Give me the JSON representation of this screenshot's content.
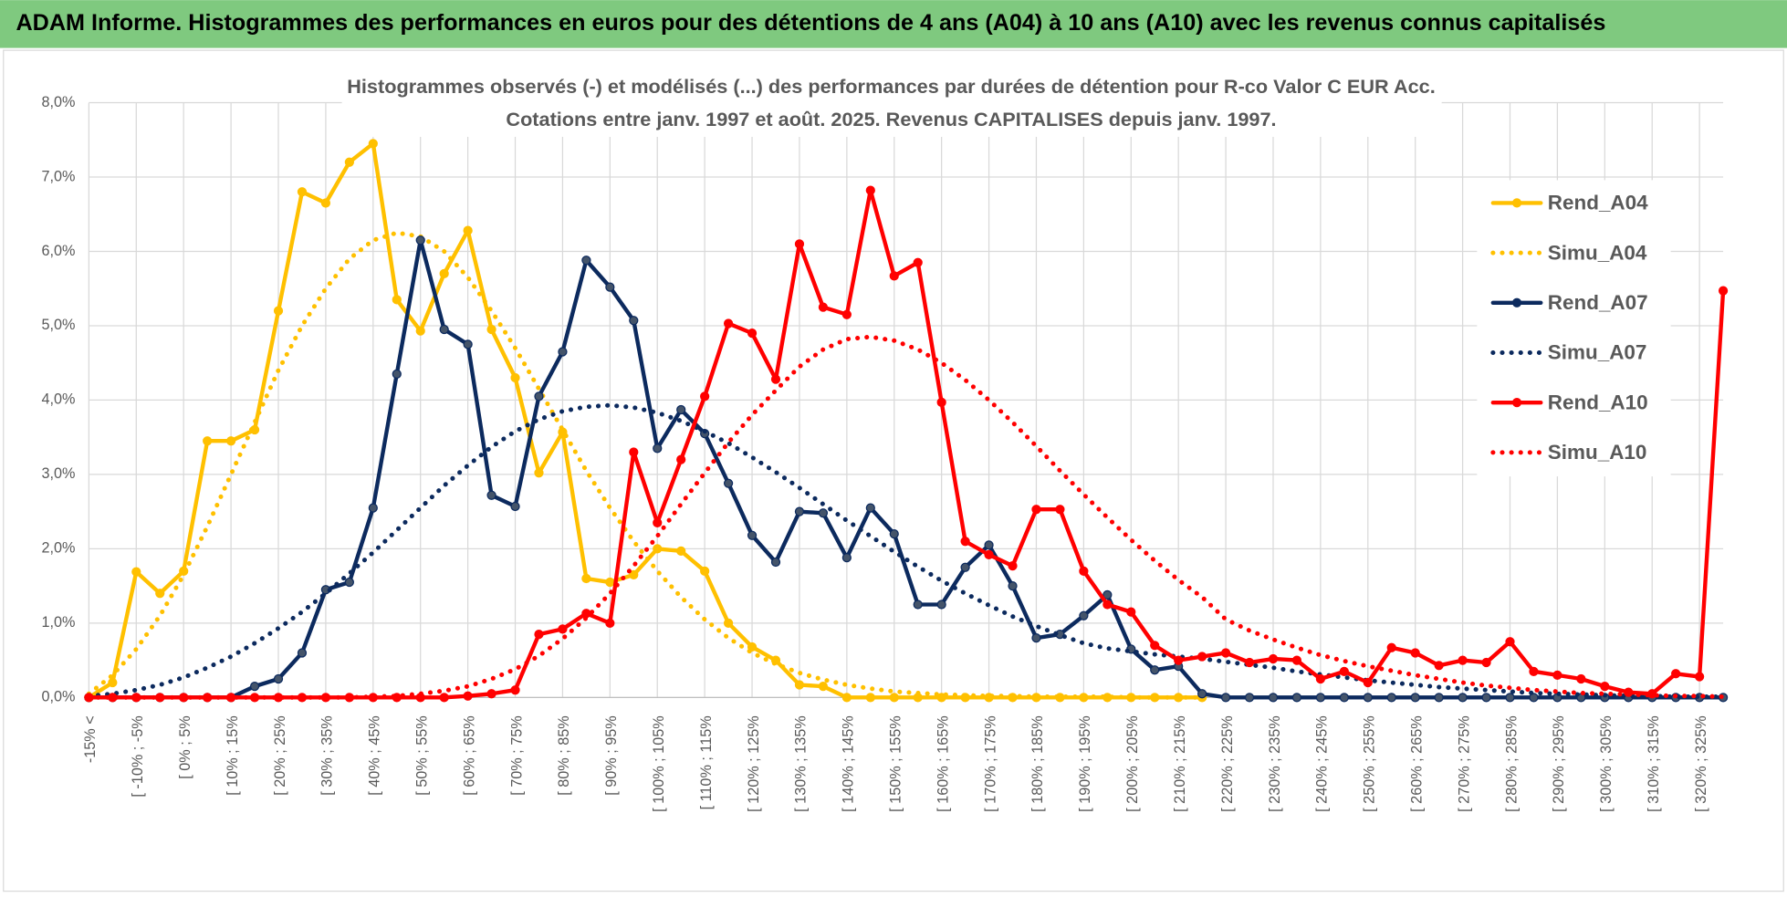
{
  "header": {
    "title": "ADAM Informe. Histogrammes des performances en euros pour des détentions de 4 ans (A04) à 10 ans (A10) avec les revenus connus capitalisés"
  },
  "chart_data": {
    "type": "line",
    "title": [
      "Histogrammes observés (-) et modélisés (...) des performances par durées de détention pour R-co Valor C EUR Acc.",
      "Cotations entre janv. 1997 et août. 2025. Revenus CAPITALISES depuis janv. 1997."
    ],
    "categories": [
      "-15% <",
      null,
      "[ -10% ; -5%",
      null,
      "[ 0% ; 5%",
      null,
      "[ 10% ; 15%",
      null,
      "[ 20% ; 25%",
      null,
      "[ 30% ; 35%",
      null,
      "[ 40% ; 45%",
      null,
      "[ 50% ; 55%",
      null,
      "[ 60% ; 65%",
      null,
      "[ 70% ; 75%",
      null,
      "[ 80% ; 85%",
      null,
      "[ 90% ; 95%",
      null,
      "[ 100% ; 105%",
      null,
      "[ 110% ; 115%",
      null,
      "[ 120% ; 125%",
      null,
      "[ 130% ; 135%",
      null,
      "[ 140% ; 145%",
      null,
      "[ 150% ; 155%",
      null,
      "[ 160% ; 165%",
      null,
      "[ 170% ; 175%",
      null,
      "[ 180% ; 185%",
      null,
      "[ 190% ; 195%",
      null,
      "[ 200% ; 205%",
      null,
      "[ 210% ; 215%",
      null,
      "[ 220% ; 225%",
      null,
      "[ 230% ; 235%",
      null,
      "[ 240% ; 245%",
      null,
      "[ 250% ; 255%",
      null,
      "[ 260% ; 265%",
      null,
      "[ 270% ; 275%",
      null,
      "[ 280% ; 285%",
      null,
      "[ 290% ; 295%",
      null,
      "[ 300% ; 305%",
      null,
      "[ 310% ; 315%",
      null,
      "[ 320% ; 325%",
      null
    ],
    "ylim": [
      0,
      8
    ],
    "yticks": [
      {
        "value": 0,
        "label": "0,0%"
      },
      {
        "value": 1,
        "label": "1,0%"
      },
      {
        "value": 2,
        "label": "2,0%"
      },
      {
        "value": 3,
        "label": "3,0%"
      },
      {
        "value": 4,
        "label": "4,0%"
      },
      {
        "value": 5,
        "label": "5,0%"
      },
      {
        "value": 6,
        "label": "6,0%"
      },
      {
        "value": 7,
        "label": "7,0%"
      },
      {
        "value": 8,
        "label": "8,0%"
      }
    ],
    "grid": true,
    "legend": "right",
    "series": [
      {
        "name": "Rend_A04",
        "color": "#ffc000",
        "style": "solid",
        "markers": true,
        "values": [
          0,
          0.2,
          1.69,
          1.4,
          1.7,
          3.45,
          3.45,
          3.6,
          5.2,
          6.8,
          6.65,
          7.2,
          7.45,
          5.35,
          4.93,
          5.7,
          6.28,
          4.95,
          4.3,
          3.02,
          3.57,
          1.6,
          1.55,
          1.65,
          2.0,
          1.97,
          1.7,
          1.0,
          0.68,
          0.5,
          0.17,
          0.15,
          0,
          0,
          0,
          0,
          0,
          0,
          0,
          0,
          0,
          0,
          0,
          0,
          0,
          0,
          0,
          0,
          null,
          null,
          null,
          null,
          null,
          null,
          null,
          null,
          null,
          null,
          null,
          null,
          null,
          null,
          null,
          null,
          null,
          null,
          null,
          null,
          null,
          null
        ]
      },
      {
        "name": "Simu_A04",
        "color": "#ffc000",
        "style": "dotted",
        "markers": false,
        "values": [
          0.05,
          0.3,
          0.65,
          1.1,
          1.65,
          2.3,
          3.0,
          3.7,
          4.4,
          5.0,
          5.5,
          5.9,
          6.15,
          6.25,
          6.2,
          6.0,
          5.65,
          5.2,
          4.7,
          4.15,
          3.6,
          3.05,
          2.55,
          2.1,
          1.7,
          1.35,
          1.05,
          0.8,
          0.6,
          0.45,
          0.33,
          0.24,
          0.17,
          0.12,
          0.08,
          0.06,
          0.04,
          0.03,
          0.02,
          0.02,
          0.01,
          0.01,
          0.01,
          0.01,
          0,
          0,
          0,
          0,
          null,
          null,
          null,
          null,
          null,
          null,
          null,
          null,
          null,
          null,
          null,
          null,
          null,
          null,
          null,
          null,
          null,
          null,
          null,
          null,
          null,
          null
        ]
      },
      {
        "name": "Rend_A07",
        "color": "#0c2a5e",
        "style": "solid",
        "markers": true,
        "values": [
          0,
          0,
          0,
          0,
          0,
          0,
          0,
          0.15,
          0.25,
          0.6,
          1.45,
          1.55,
          2.55,
          4.35,
          6.15,
          4.95,
          4.75,
          2.72,
          2.57,
          4.05,
          4.65,
          5.88,
          5.52,
          5.07,
          3.35,
          3.87,
          3.55,
          2.88,
          2.18,
          1.82,
          2.5,
          2.48,
          1.88,
          2.55,
          2.2,
          1.25,
          1.25,
          1.75,
          2.05,
          1.5,
          0.8,
          0.85,
          1.1,
          1.38,
          0.65,
          0.37,
          0.42,
          0.05,
          0,
          0,
          0,
          0,
          0,
          0,
          0,
          0,
          0,
          0,
          0,
          0,
          0,
          0,
          0,
          0,
          0,
          0,
          0,
          0,
          0,
          0
        ]
      },
      {
        "name": "Simu_A07",
        "color": "#0c2a5e",
        "style": "dotted",
        "markers": false,
        "values": [
          0.02,
          0.05,
          0.1,
          0.17,
          0.27,
          0.4,
          0.55,
          0.73,
          0.93,
          1.15,
          1.4,
          1.67,
          1.95,
          2.25,
          2.55,
          2.85,
          3.12,
          3.37,
          3.58,
          3.74,
          3.85,
          3.91,
          3.93,
          3.9,
          3.83,
          3.72,
          3.58,
          3.42,
          3.23,
          3.03,
          2.82,
          2.6,
          2.38,
          2.17,
          1.96,
          1.76,
          1.57,
          1.4,
          1.24,
          1.09,
          0.96,
          0.84,
          0.73,
          0.66,
          0.62,
          0.58,
          0.55,
          0.52,
          0.48,
          0.44,
          0.4,
          0.35,
          0.31,
          0.27,
          0.23,
          0.2,
          0.17,
          0.14,
          0.12,
          0.1,
          0.08,
          0.06,
          0.05,
          0.04,
          0.03,
          0.02,
          0.02,
          0.01,
          0.01,
          0.01
        ]
      },
      {
        "name": "Rend_A10",
        "color": "#ff0000",
        "style": "solid",
        "markers": true,
        "values": [
          0,
          0,
          0,
          0,
          0,
          0,
          0,
          0,
          0,
          0,
          0,
          0,
          0,
          0,
          0,
          0,
          0.02,
          0.05,
          0.1,
          0.85,
          0.92,
          1.13,
          1.0,
          3.3,
          2.35,
          3.2,
          4.05,
          5.03,
          4.9,
          4.28,
          6.1,
          5.25,
          5.15,
          6.82,
          5.67,
          5.85,
          3.97,
          2.1,
          1.92,
          1.77,
          2.53,
          2.53,
          1.7,
          1.25,
          1.15,
          0.7,
          0.5,
          0.55,
          0.6,
          0.47,
          0.52,
          0.5,
          0.25,
          0.35,
          0.2,
          0.67,
          0.6,
          0.43,
          0.5,
          0.47,
          0.75,
          0.35,
          0.3,
          0.25,
          0.15,
          0.07,
          0.05,
          0.32,
          0.28,
          5.47
        ]
      },
      {
        "name": "Simu_A10",
        "color": "#ff0000",
        "style": "dotted",
        "markers": false,
        "values": [
          0,
          0,
          0,
          0,
          0,
          0,
          0,
          0,
          0,
          0,
          0,
          0,
          0.01,
          0.02,
          0.05,
          0.09,
          0.15,
          0.25,
          0.38,
          0.56,
          0.79,
          1.07,
          1.4,
          1.77,
          2.17,
          2.6,
          3.02,
          3.43,
          3.8,
          4.13,
          4.45,
          4.68,
          4.82,
          4.85,
          4.8,
          4.68,
          4.5,
          4.27,
          4.0,
          3.7,
          3.38,
          3.05,
          2.73,
          2.42,
          2.12,
          1.84,
          1.58,
          1.35,
          1.05,
          0.9,
          0.78,
          0.67,
          0.57,
          0.49,
          0.42,
          0.36,
          0.3,
          0.25,
          0.2,
          0.16,
          0.13,
          0.1,
          0.08,
          0.06,
          0.05,
          0.04,
          0.03,
          0.02,
          0.02,
          0.01
        ]
      }
    ]
  }
}
